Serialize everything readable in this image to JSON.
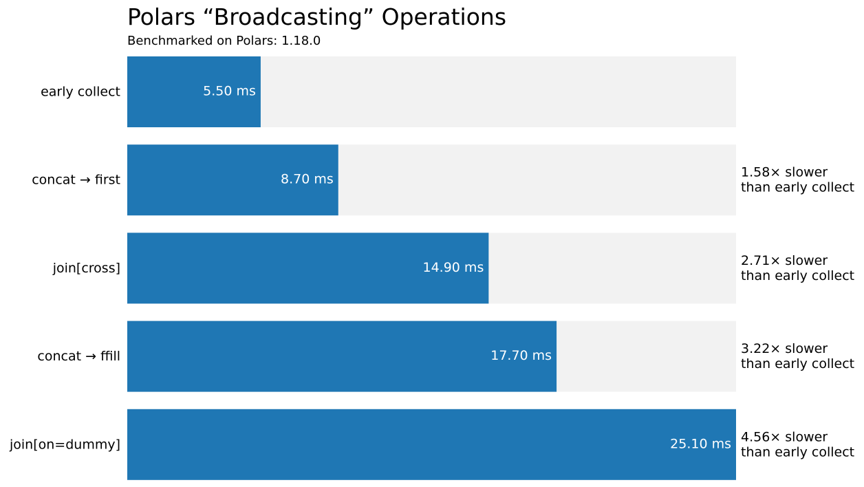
{
  "chart_data": {
    "type": "bar",
    "orientation": "horizontal",
    "title": "Polars “Broadcasting” Operations",
    "subtitle": "Benchmarked on Polars: 1.18.0",
    "categories": [
      "early collect",
      "concat → first",
      "join[cross]",
      "concat → ffill",
      "join[on=dummy]"
    ],
    "values": [
      5.5,
      8.7,
      14.9,
      17.7,
      25.1
    ],
    "value_labels": [
      "5.50 ms",
      "8.70 ms",
      "14.90 ms",
      "17.70 ms",
      "25.10 ms"
    ],
    "annotations": [
      null,
      {
        "line1": "1.58× slower",
        "line2": "than early collect"
      },
      {
        "line1": "2.71× slower",
        "line2": "than early collect"
      },
      {
        "line1": "3.22× slower",
        "line2": "than early collect"
      },
      {
        "line1": "4.56× slower",
        "line2": "than early collect"
      }
    ],
    "xlim": [
      0,
      25.1
    ],
    "xlabel": "",
    "ylabel": "",
    "grid": false,
    "colors": {
      "bar": "#1f77b4",
      "background_bar": "#f2f2f2"
    }
  }
}
